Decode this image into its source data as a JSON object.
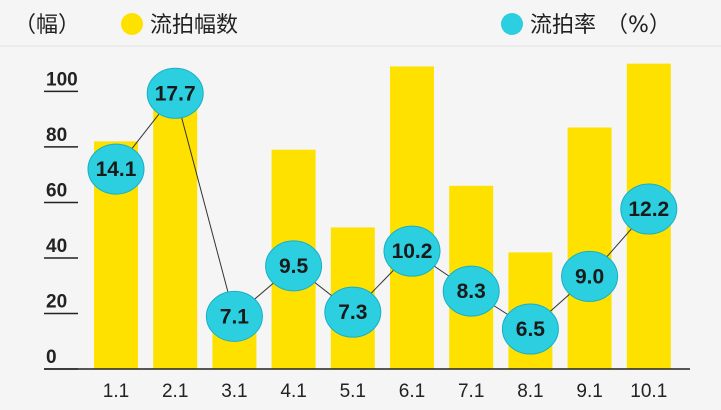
{
  "chart_data": {
    "type": "bar+line",
    "categories": [
      "1.1",
      "2.1",
      "3.1",
      "4.1",
      "5.1",
      "6.1",
      "7.1",
      "8.1",
      "9.1",
      "10.1"
    ],
    "series": [
      {
        "name": "流拍幅数",
        "type": "bar",
        "axis": "left",
        "values": [
          82,
          99,
          20,
          79,
          51,
          109,
          66,
          42,
          87,
          110
        ]
      },
      {
        "name": "流拍率",
        "type": "line",
        "axis": "right",
        "values": [
          14.1,
          17.7,
          7.1,
          9.5,
          7.3,
          10.2,
          8.3,
          6.5,
          9.0,
          12.2
        ],
        "labels": [
          "14.1",
          "17.7",
          "7.1",
          "9.5",
          "7.3",
          "10.2",
          "8.3",
          "6.5",
          "9.0",
          "12.2"
        ]
      }
    ],
    "yaxis_left": {
      "label": "（幅）",
      "ticks": [
        "0",
        "20",
        "40",
        "60",
        "80",
        "100"
      ],
      "range": [
        0,
        116
      ]
    },
    "yaxis_right": {
      "label": "（%）",
      "range": [
        4.6,
        19.9
      ]
    },
    "legend": {
      "placement": "top"
    },
    "grid": false,
    "colors": {
      "bar": "#ffe100",
      "marker": "#2ccfe0",
      "marker_border": "#1aaec4",
      "line": "#333333"
    }
  }
}
